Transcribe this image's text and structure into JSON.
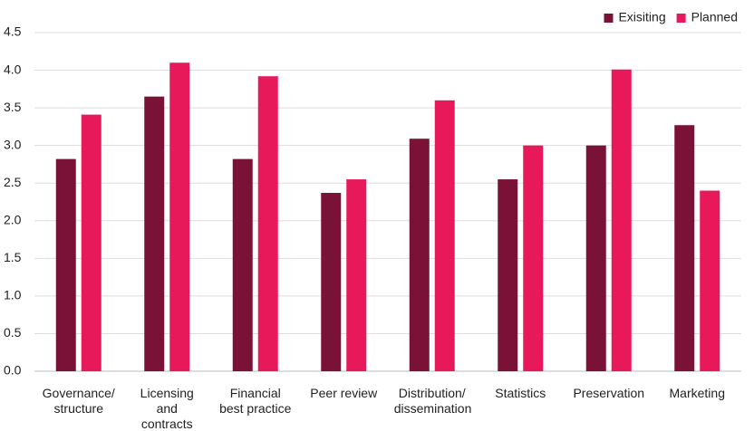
{
  "chart_data": {
    "type": "bar",
    "categories": [
      "Governance/ structure",
      "Licensing and contracts",
      "Financial best practice",
      "Peer review",
      "Distribution/ dissemination",
      "Statistics",
      "Preservation",
      "Marketing"
    ],
    "series": [
      {
        "name": "Exisiting",
        "color": "#7a1238",
        "values": [
          2.82,
          3.65,
          2.82,
          2.37,
          3.09,
          2.55,
          3.0,
          3.27
        ]
      },
      {
        "name": "Planned",
        "color": "#e8195a",
        "values": [
          3.41,
          4.1,
          3.92,
          2.55,
          3.6,
          3.0,
          4.01,
          2.4
        ]
      }
    ],
    "ylim": [
      0,
      4.5
    ],
    "yticks": [
      {
        "value": 0,
        "label": "0.0"
      },
      0.5,
      {
        "value": 1,
        "label": "1.0"
      },
      1.5,
      {
        "value": 2,
        "label": "2.0"
      },
      2.5,
      {
        "value": 3,
        "label": "3.0"
      },
      3.5,
      {
        "value": 4,
        "label": "4.0"
      },
      4.5
    ],
    "grid": true,
    "legend": "top-right"
  }
}
